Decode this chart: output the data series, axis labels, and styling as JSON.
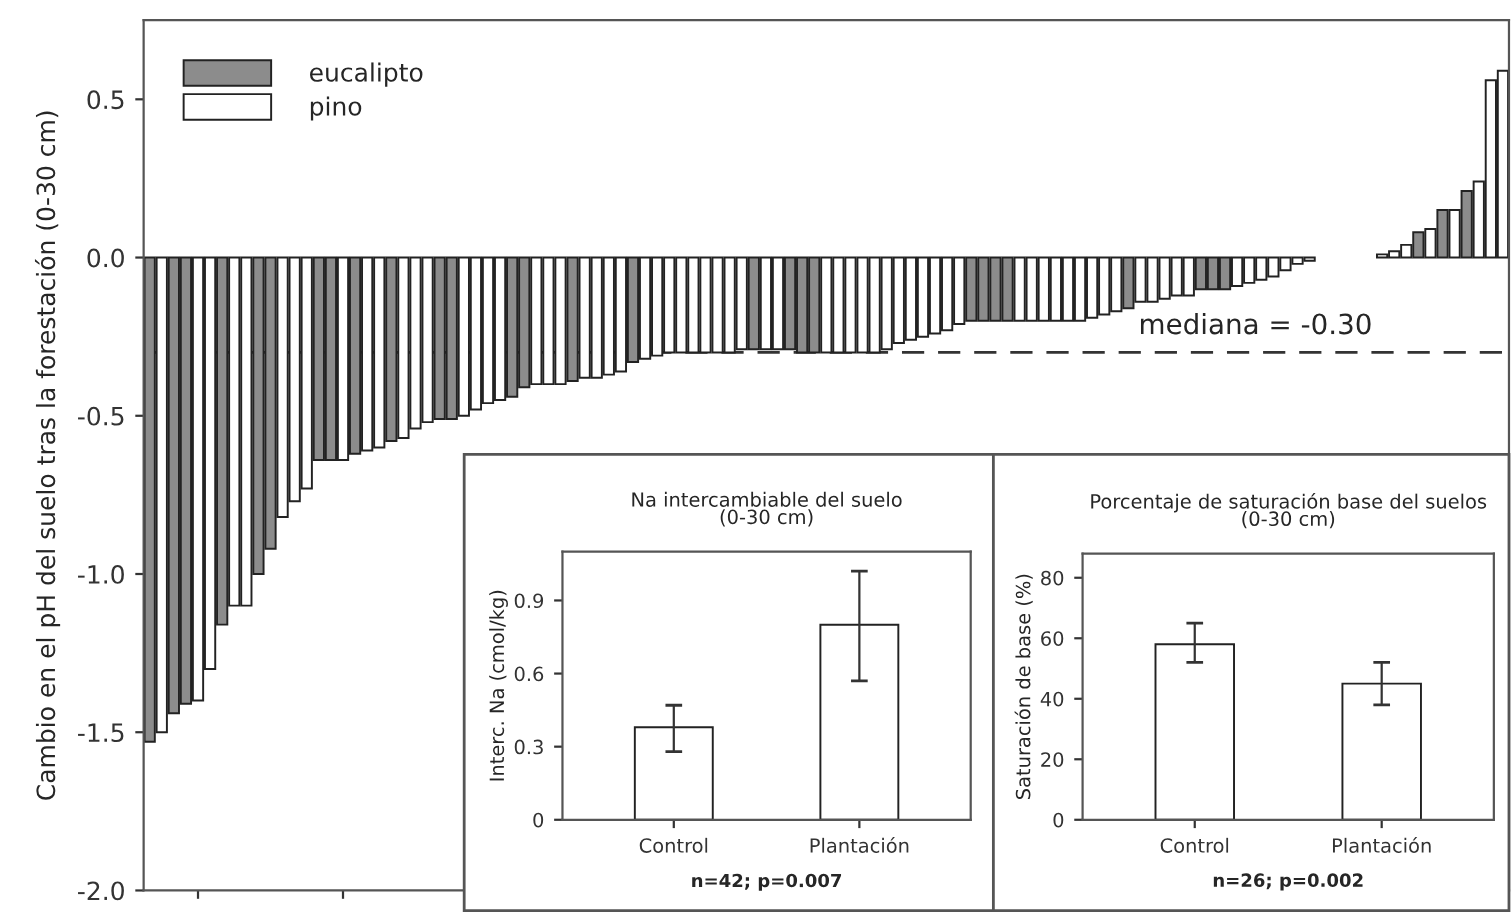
{
  "chart_data": [
    {
      "type": "bar",
      "ylabel": "Cambio en el pH del suelo tras la forestación (0-30 cm)",
      "legend": "top left",
      "stacked": true,
      "categories": [
        null,
        null,
        null,
        null,
        null,
        null,
        null,
        null,
        null,
        null,
        null,
        null,
        null,
        null,
        null,
        null,
        null,
        null,
        null,
        null,
        null,
        null,
        null,
        null,
        null,
        null,
        null,
        null,
        null,
        null,
        null,
        null,
        null,
        null,
        null,
        null,
        null,
        null,
        null,
        null,
        null,
        null,
        null,
        null,
        null,
        null,
        null,
        null,
        null,
        null,
        null,
        null,
        null,
        null,
        null,
        null,
        null,
        null,
        null,
        null,
        null,
        null,
        null,
        null,
        null,
        null,
        null,
        null,
        null,
        null,
        null,
        null,
        null,
        null,
        null,
        null,
        null,
        null,
        null,
        null,
        null,
        null,
        null,
        null,
        null,
        null,
        null,
        null,
        null,
        null,
        null,
        null,
        null,
        null,
        null,
        null,
        null,
        null,
        null,
        null,
        null,
        null,
        null,
        null,
        null,
        null,
        null,
        null,
        null,
        null,
        null,
        null,
        null
      ],
      "series": [
        {
          "name": "eucalipto",
          "color": "#8c8c8c",
          "values": [
            -1.53,
            null,
            -1.44,
            -1.41,
            null,
            null,
            -1.16,
            null,
            null,
            -1.0,
            -0.92,
            null,
            null,
            null,
            -0.64,
            -0.64,
            null,
            -0.62,
            null,
            null,
            -0.58,
            null,
            null,
            null,
            -0.51,
            -0.51,
            null,
            null,
            null,
            null,
            -0.44,
            -0.41,
            null,
            null,
            null,
            -0.39,
            null,
            null,
            null,
            null,
            -0.33,
            null,
            null,
            null,
            null,
            null,
            null,
            null,
            null,
            null,
            -0.29,
            null,
            null,
            -0.29,
            -0.3,
            -0.3,
            null,
            null,
            null,
            null,
            null,
            null,
            null,
            null,
            null,
            null,
            null,
            null,
            -0.2,
            -0.2,
            -0.2,
            -0.2,
            null,
            null,
            null,
            null,
            null,
            null,
            null,
            null,
            null,
            -0.16,
            null,
            null,
            null,
            null,
            null,
            -0.1,
            -0.1,
            -0.1,
            null,
            null,
            null,
            null,
            null,
            null,
            null,
            null,
            null,
            null,
            null,
            null,
            null,
            null,
            null,
            0.08,
            null,
            0.15,
            null,
            0.21,
            null,
            null,
            null
          ]
        },
        {
          "name": "pino",
          "color": "#ffffff",
          "values": [
            null,
            -1.5,
            null,
            null,
            -1.4,
            -1.3,
            null,
            -1.1,
            -1.1,
            null,
            null,
            -0.82,
            -0.77,
            -0.73,
            null,
            null,
            -0.64,
            null,
            -0.61,
            -0.6,
            null,
            -0.57,
            -0.54,
            -0.52,
            null,
            null,
            -0.5,
            -0.48,
            -0.46,
            -0.45,
            null,
            null,
            -0.4,
            -0.4,
            -0.4,
            null,
            -0.38,
            -0.38,
            -0.37,
            -0.36,
            null,
            -0.32,
            -0.31,
            -0.3,
            -0.3,
            -0.3,
            -0.3,
            -0.3,
            -0.3,
            -0.29,
            null,
            -0.29,
            -0.29,
            null,
            null,
            null,
            -0.3,
            -0.3,
            -0.3,
            -0.3,
            -0.3,
            -0.29,
            -0.27,
            -0.26,
            -0.25,
            -0.24,
            -0.23,
            -0.21,
            null,
            null,
            null,
            null,
            -0.2,
            -0.2,
            -0.2,
            -0.2,
            -0.2,
            -0.2,
            -0.19,
            -0.18,
            -0.17,
            null,
            -0.14,
            -0.14,
            -0.13,
            -0.12,
            -0.12,
            null,
            null,
            null,
            -0.09,
            -0.08,
            -0.07,
            -0.06,
            -0.04,
            -0.02,
            -0.01,
            null,
            null,
            null,
            null,
            null,
            0.01,
            0.02,
            0.04,
            null,
            0.09,
            null,
            0.15,
            null,
            0.24,
            0.56,
            0.59
          ]
        }
      ],
      "ylim": [
        -2.0,
        0.75
      ],
      "yticks": [
        {
          "value": -2,
          "label": "-2.0"
        },
        -1.5,
        {
          "value": -1,
          "label": "-1.0"
        },
        -0.5,
        {
          "value": 0,
          "label": "0.0"
        },
        0.5
      ],
      "ref_lines": [
        {
          "axis": "y",
          "value": -0.3,
          "label": "mediana = -0.30",
          "line_style": "dashed"
        }
      ]
    },
    {
      "type": "bar",
      "title": "Na intercambiable del suelo\n(0-30 cm)",
      "ylabel": "Interc. Na (cmol/kg)",
      "categories": [
        "Control",
        "Plantación"
      ],
      "values": [
        0.38,
        0.8
      ],
      "errors": [
        [
          0.28,
          0.47
        ],
        [
          0.57,
          1.02
        ]
      ],
      "color": "#ffffff",
      "ylim": [
        0,
        1.1
      ],
      "yticks": [
        0,
        0.3,
        0.6,
        0.9
      ],
      "annotations": [
        "n=42; p=0.007"
      ]
    },
    {
      "type": "bar",
      "title": "Porcentaje de saturación base del suelos\n(0-30 cm)",
      "ylabel": "Saturación de base (%)",
      "categories": [
        "Control",
        "Plantación"
      ],
      "values": [
        58,
        45
      ],
      "errors": [
        [
          52,
          65
        ],
        [
          38,
          52
        ]
      ],
      "color": "#ffffff",
      "ylim": [
        0,
        88
      ],
      "yticks": [
        0,
        20,
        40,
        60,
        80
      ],
      "annotations": [
        "n=26; p=0.002"
      ]
    }
  ]
}
